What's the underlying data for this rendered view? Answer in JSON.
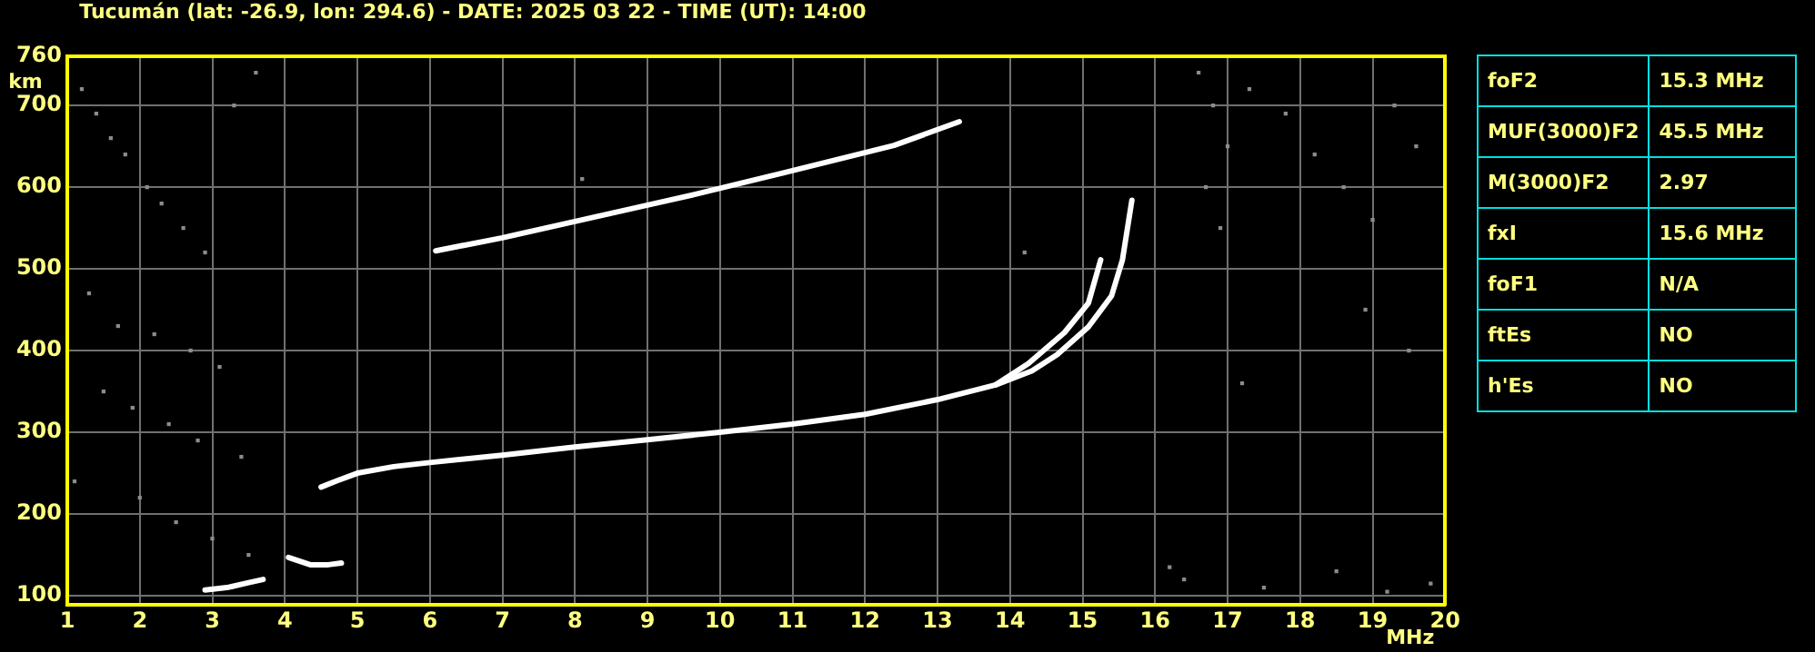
{
  "chart_data": {
    "type": "line",
    "title": "Tucumán (lat: -26.9, lon: 294.6) - DATE: 2025 03 22 - TIME (UT): 14:00",
    "xlabel": "MHz",
    "ylabel": "km",
    "xlim": [
      1,
      20
    ],
    "xticks": [
      1,
      2,
      3,
      4,
      5,
      6,
      7,
      8,
      9,
      10,
      11,
      12,
      13,
      14,
      15,
      16,
      17,
      18,
      19,
      20
    ],
    "ylim": [
      89,
      760
    ],
    "yticks": [
      100,
      200,
      300,
      400,
      500,
      600,
      700,
      760
    ],
    "grid": true,
    "legend": false,
    "marker": "none",
    "line_style": "solid",
    "series": [
      {
        "color": "#ffffff",
        "x": [
          4.5,
          4.7,
          5,
          5.5,
          6,
          7,
          8,
          9,
          10,
          11,
          12,
          13,
          13.8,
          14.25,
          14.75,
          15.08,
          15.25
        ],
        "values": [
          233,
          240,
          250,
          258,
          263,
          272,
          282,
          291,
          300,
          310,
          322,
          340,
          358,
          384,
          422,
          458,
          511
        ]
      },
      {
        "color": "#ffffff",
        "x": [
          13.8,
          14.3,
          14.65,
          15.08,
          15.4,
          15.55,
          15.68
        ],
        "values": [
          358,
          375,
          395,
          429,
          467,
          511,
          584
        ]
      },
      {
        "color": "#ffffff",
        "x": [
          6.08,
          7,
          8,
          9,
          9.65,
          10.9,
          12.4,
          13.3
        ],
        "values": [
          522,
          538,
          558,
          578,
          591,
          618,
          651,
          680
        ]
      },
      {
        "color": "#ffffff",
        "x": [
          2.9,
          3.2,
          3.5,
          3.7
        ],
        "values": [
          107,
          110,
          116,
          120
        ]
      },
      {
        "color": "#ffffff",
        "x": [
          4.05,
          4.35,
          4.6,
          4.78
        ],
        "values": [
          147,
          138,
          138,
          140
        ]
      },
      {
        "type": "scatter",
        "marker": "square",
        "color": "#8c8c8c",
        "x": [
          1.2,
          1.4,
          1.6,
          1.8,
          2.1,
          2.3,
          2.6,
          2.9,
          3.3,
          3.6,
          1.3,
          1.7,
          2.2,
          2.7,
          3.1,
          1.5,
          1.9,
          2.4,
          2.8,
          3.4,
          1.1,
          2.0,
          2.5,
          3.0,
          3.5,
          16.6,
          16.8,
          17.0,
          16.7,
          16.9,
          17.3,
          17.8,
          18.2,
          18.6,
          19.0,
          19.3,
          19.6,
          16.4,
          17.5,
          18.5,
          19.2,
          19.8,
          16.2,
          18.9,
          19.5,
          17.2,
          14.2,
          8.1
        ],
        "values": [
          720,
          690,
          660,
          640,
          600,
          580,
          550,
          520,
          700,
          740,
          470,
          430,
          420,
          400,
          380,
          350,
          330,
          310,
          290,
          270,
          240,
          220,
          190,
          170,
          150,
          740,
          700,
          650,
          600,
          550,
          720,
          690,
          640,
          600,
          560,
          700,
          650,
          120,
          110,
          130,
          105,
          115,
          135,
          450,
          400,
          360,
          520,
          610
        ]
      }
    ],
    "annotations": [
      "foF2",
      "15.3 MHz",
      "MUF(3000)F2",
      "45.5 MHz",
      "M(3000)F2",
      "2.97",
      "fxI",
      "15.6 MHz",
      "foF1",
      "N/A",
      "ftEs",
      "NO",
      "h'Es",
      "NO"
    ]
  }
}
